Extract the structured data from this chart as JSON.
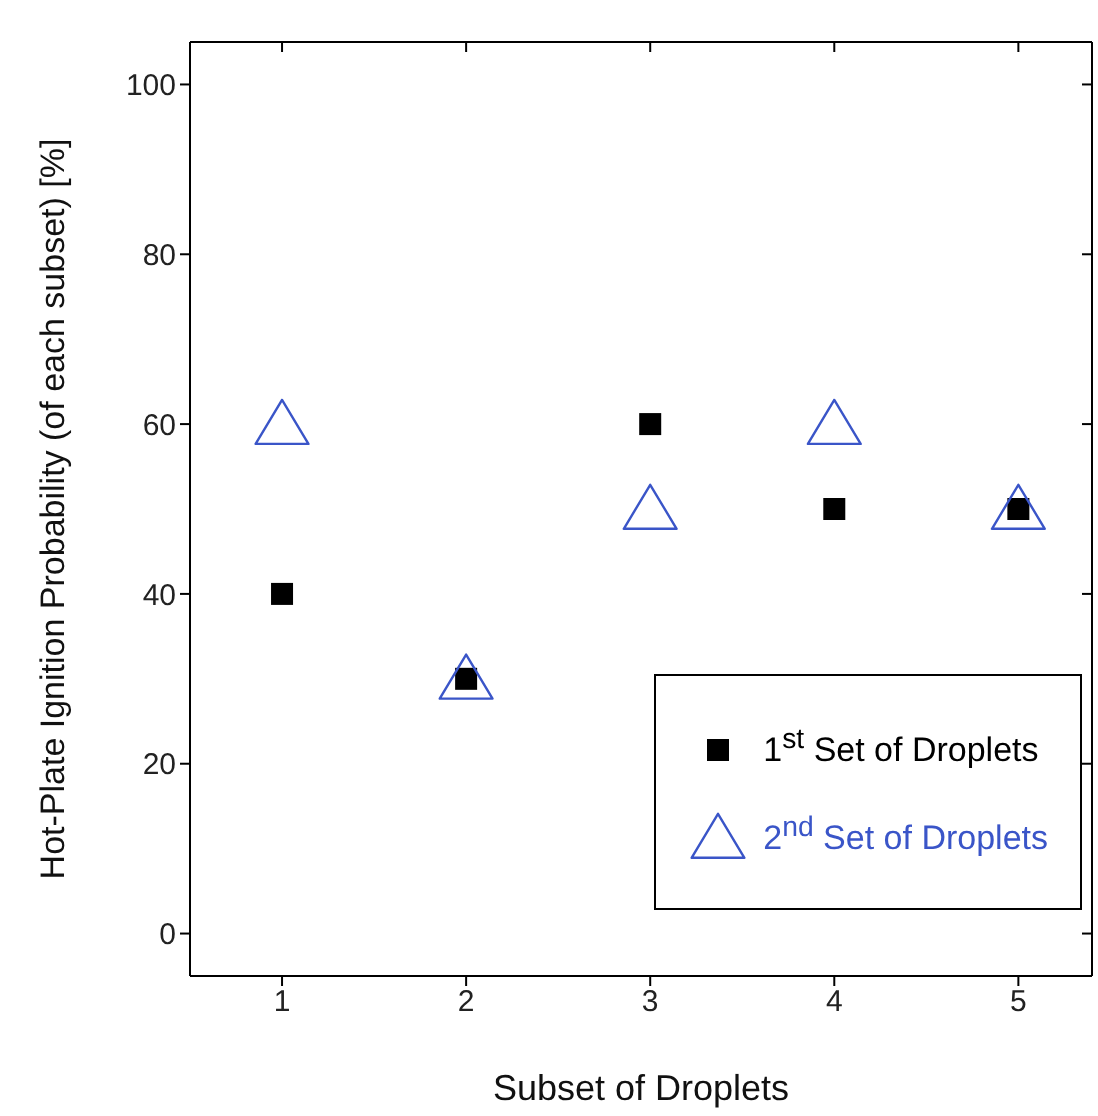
{
  "chart_data": {
    "type": "scatter",
    "xlabel": "Subset of Droplets",
    "ylabel": "Hot-Plate Ignition Probability (of each subset) [%]",
    "x": [
      1,
      2,
      3,
      4,
      5
    ],
    "xlim": [
      0.5,
      5.4
    ],
    "xticks": [
      1,
      2,
      3,
      4,
      5
    ],
    "ylim": [
      -5,
      105
    ],
    "yticks": [
      0,
      20,
      40,
      60,
      80,
      100
    ],
    "series": [
      {
        "name": "1$^{st}$ Set of Droplets",
        "color": "#000000",
        "marker": "square",
        "values": [
          40,
          30,
          60,
          50,
          50
        ]
      },
      {
        "name": "2$^{nd}$ Set of Droplets",
        "color": "#3a55c8",
        "marker": "triangle",
        "values": [
          60,
          30,
          50,
          60,
          50
        ]
      }
    ],
    "grid": false,
    "legend": "bottom right"
  }
}
